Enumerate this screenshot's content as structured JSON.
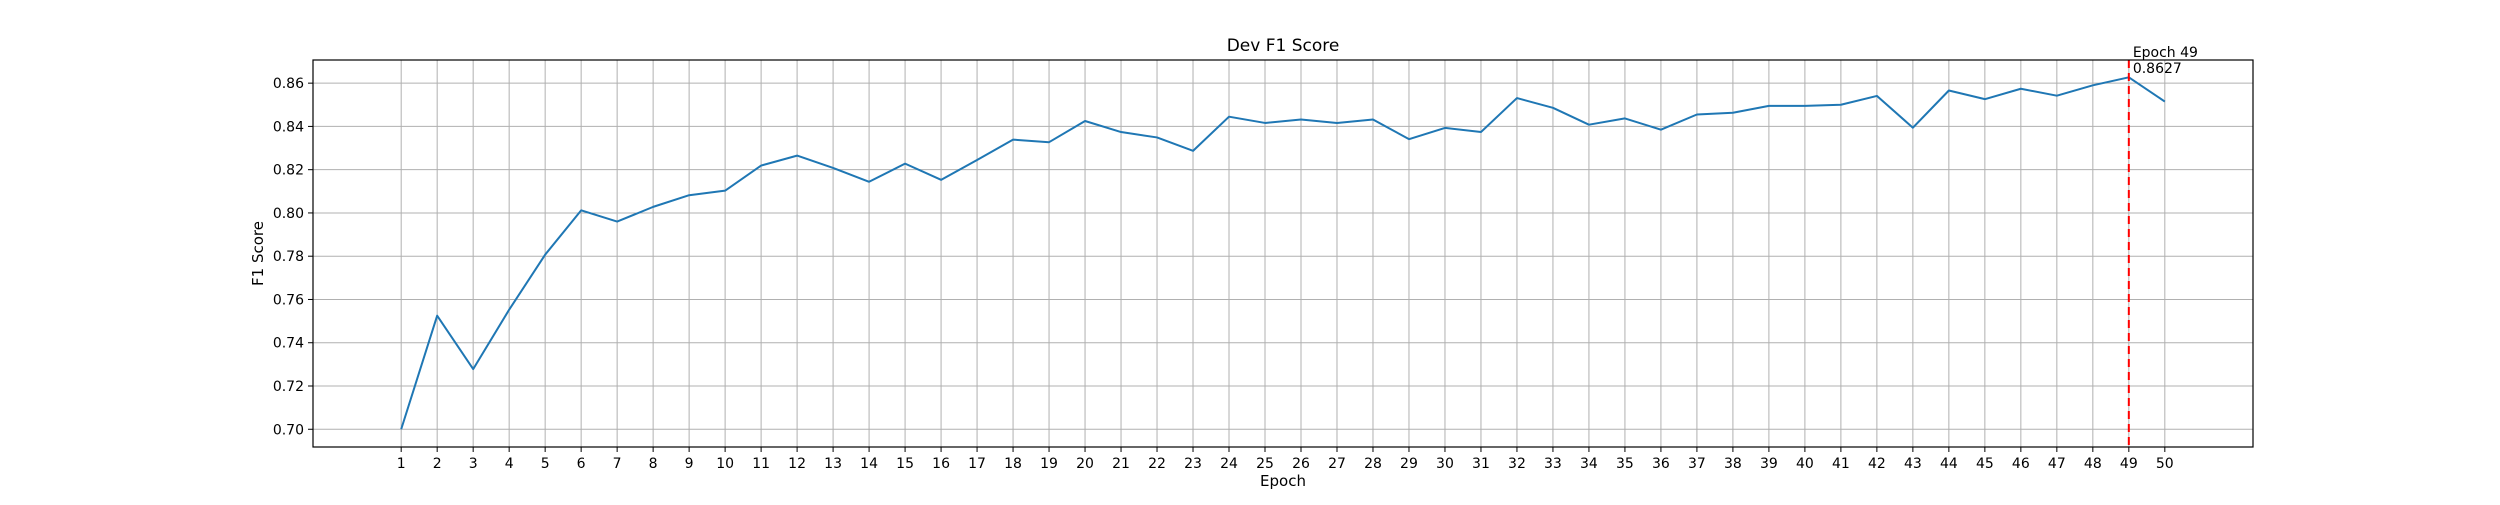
{
  "chart_data": {
    "type": "line",
    "title": "Dev F1 Score",
    "xlabel": "Epoch",
    "ylabel": "F1 Score",
    "x": [
      1,
      2,
      3,
      4,
      5,
      6,
      7,
      8,
      9,
      10,
      11,
      12,
      13,
      14,
      15,
      16,
      17,
      18,
      19,
      20,
      21,
      22,
      23,
      24,
      25,
      26,
      27,
      28,
      29,
      30,
      31,
      32,
      33,
      34,
      35,
      36,
      37,
      38,
      39,
      40,
      41,
      42,
      43,
      44,
      45,
      46,
      47,
      48,
      49,
      50
    ],
    "series": [
      {
        "color": "#1f77b4",
        "values": [
          0.7,
          0.7525,
          0.7278,
          0.7553,
          0.7807,
          0.8012,
          0.796,
          0.8028,
          0.8082,
          0.8103,
          0.8219,
          0.8265,
          0.8208,
          0.8144,
          0.8228,
          0.8153,
          0.8245,
          0.8339,
          0.8327,
          0.8425,
          0.8374,
          0.8349,
          0.8287,
          0.8445,
          0.8416,
          0.8432,
          0.8416,
          0.8432,
          0.8341,
          0.8393,
          0.8374,
          0.8531,
          0.8486,
          0.8408,
          0.8437,
          0.8385,
          0.8455,
          0.8463,
          0.8495,
          0.8495,
          0.85,
          0.8541,
          0.8394,
          0.8566,
          0.8526,
          0.8574,
          0.8542,
          0.859,
          0.8627,
          0.8515
        ]
      }
    ],
    "xticks": [
      "1",
      "2",
      "3",
      "4",
      "5",
      "6",
      "7",
      "8",
      "9",
      "10",
      "11",
      "12",
      "13",
      "14",
      "15",
      "16",
      "17",
      "18",
      "19",
      "20",
      "21",
      "22",
      "23",
      "24",
      "25",
      "26",
      "27",
      "28",
      "29",
      "30",
      "31",
      "32",
      "33",
      "34",
      "35",
      "36",
      "37",
      "38",
      "39",
      "40",
      "41",
      "42",
      "43",
      "44",
      "45",
      "46",
      "47",
      "48",
      "49",
      "50"
    ],
    "yticks": [
      "0.70",
      "0.72",
      "0.74",
      "0.76",
      "0.78",
      "0.80",
      "0.82",
      "0.84",
      "0.86"
    ],
    "xlim": [
      -1.45,
      52.45
    ],
    "ylim": [
      0.6918,
      0.8707
    ],
    "grid": true,
    "best_marker": {
      "x": 49,
      "color": "#ff0000",
      "label_line1": "Epoch 49",
      "label_line2": "0.8627"
    }
  }
}
